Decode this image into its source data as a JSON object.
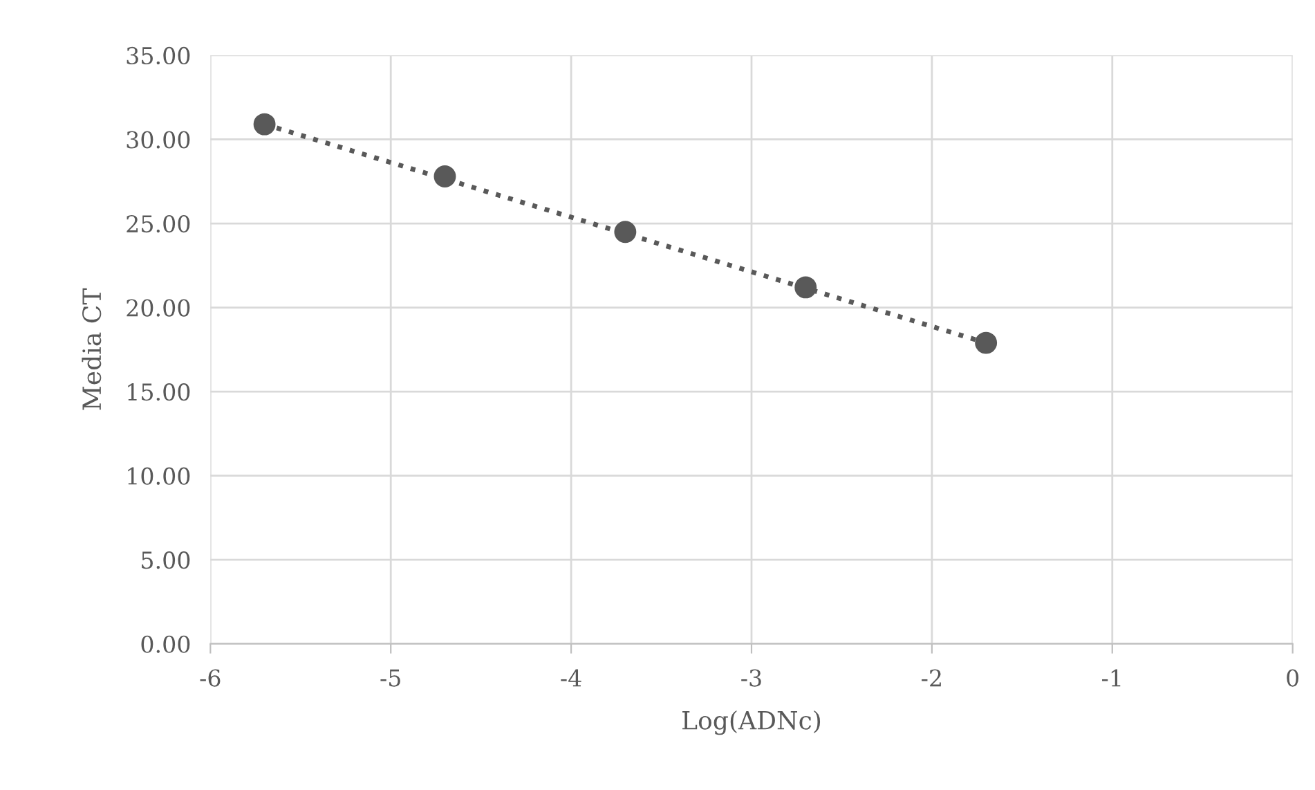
{
  "chart_data": {
    "type": "scatter",
    "xlabel": "Log(ADNc)",
    "ylabel": "Media CT",
    "xlim": [
      -6,
      0
    ],
    "xticks": [
      -6,
      -5,
      -4,
      -3,
      -2,
      -1,
      0
    ],
    "ylim": [
      0,
      35
    ],
    "yticks": [
      {
        "value": 0,
        "label": "0.00"
      },
      {
        "value": 5,
        "label": "5.00"
      },
      {
        "value": 10,
        "label": "10.00"
      },
      {
        "value": 15,
        "label": "15.00"
      },
      {
        "value": 20,
        "label": "20.00"
      },
      {
        "value": 25,
        "label": "25.00"
      },
      {
        "value": 30,
        "label": "30.00"
      },
      {
        "value": 35,
        "label": "35.00"
      }
    ],
    "grid": true,
    "legend": false,
    "series": [
      {
        "color": "#595959",
        "marker": "circle",
        "x": [
          -5.7,
          -4.7,
          -3.7,
          -2.7,
          -1.7
        ],
        "values": [
          30.9,
          27.8,
          24.5,
          21.2,
          17.9
        ]
      },
      {
        "type": "line",
        "color": "#595959",
        "line_style": "dotted",
        "x": [
          -5.7,
          -1.7
        ],
        "values": [
          30.9,
          17.9
        ]
      }
    ]
  }
}
